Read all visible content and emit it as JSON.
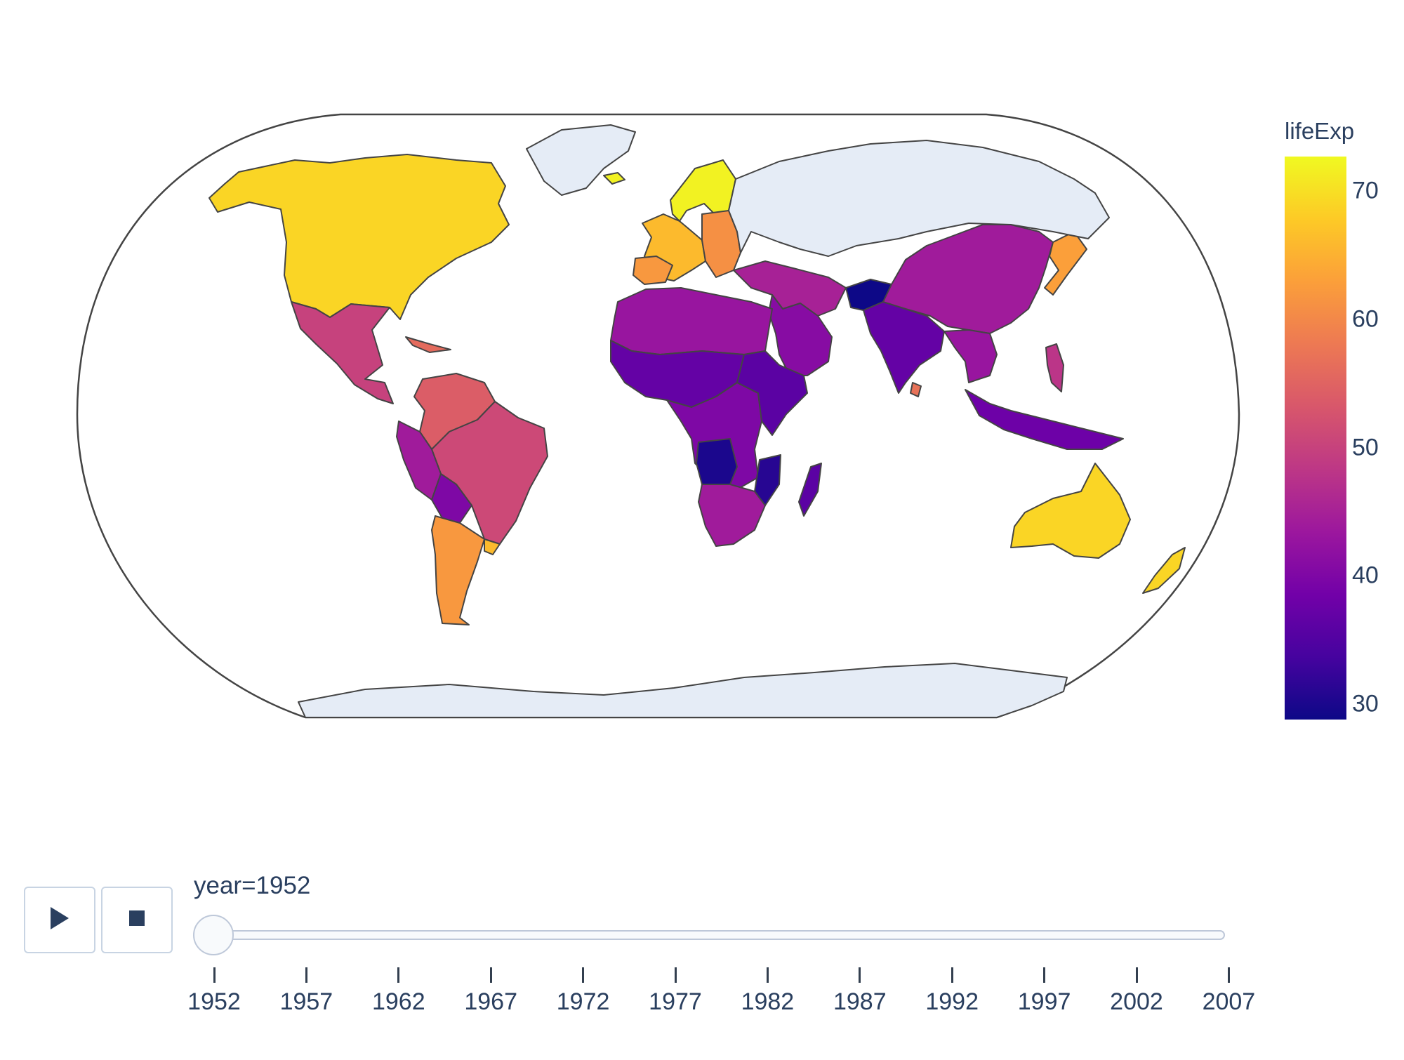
{
  "colors": {
    "land_no_data": "#e5ecf6",
    "country_border": "#444444",
    "frame": "#444444",
    "text": "#2a3f5f",
    "colorscale": [
      "#0d0887",
      "#46039f",
      "#7201a8",
      "#9c179e",
      "#bd3786",
      "#d8576b",
      "#ed7953",
      "#fb9f3a",
      "#fdca26",
      "#f0f921"
    ]
  },
  "map": {
    "projection": "natural earth",
    "color_variable": "lifeExp",
    "regions": [
      {
        "name": "North America (US & Canada)",
        "lifeExp": 69
      },
      {
        "name": "Mexico & Central America",
        "lifeExp": 50
      },
      {
        "name": "Caribbean",
        "lifeExp": 56
      },
      {
        "name": "Venezuela & Colombia",
        "lifeExp": 54
      },
      {
        "name": "Brazil",
        "lifeExp": 51
      },
      {
        "name": "Peru",
        "lifeExp": 44
      },
      {
        "name": "Bolivia",
        "lifeExp": 40
      },
      {
        "name": "Argentina & Chile",
        "lifeExp": 62
      },
      {
        "name": "Uruguay",
        "lifeExp": 66
      },
      {
        "name": "Western Europe",
        "lifeExp": 66
      },
      {
        "name": "Iberia",
        "lifeExp": 62
      },
      {
        "name": "Scandinavia",
        "lifeExp": 72
      },
      {
        "name": "Eastern Europe",
        "lifeExp": 61
      },
      {
        "name": "Turkey & Middle East",
        "lifeExp": 45
      },
      {
        "name": "Arabia",
        "lifeExp": 41
      },
      {
        "name": "Afghanistan",
        "lifeExp": 28.8
      },
      {
        "name": "North Africa",
        "lifeExp": 43
      },
      {
        "name": "Sahel",
        "lifeExp": 37
      },
      {
        "name": "Central Africa",
        "lifeExp": 40
      },
      {
        "name": "East Africa",
        "lifeExp": 36
      },
      {
        "name": "Angola",
        "lifeExp": 30
      },
      {
        "name": "Mozambique",
        "lifeExp": 31
      },
      {
        "name": "Southern Africa",
        "lifeExp": 44
      },
      {
        "name": "Madagascar",
        "lifeExp": 36
      },
      {
        "name": "South Asia",
        "lifeExp": 37
      },
      {
        "name": "Sri Lanka",
        "lifeExp": 57
      },
      {
        "name": "China & Mongolia",
        "lifeExp": 44
      },
      {
        "name": "Southeast Asia",
        "lifeExp": 43
      },
      {
        "name": "Indonesia",
        "lifeExp": 38
      },
      {
        "name": "Philippines",
        "lifeExp": 48
      },
      {
        "name": "Japan & Korea",
        "lifeExp": 63
      },
      {
        "name": "Australia",
        "lifeExp": 69
      },
      {
        "name": "New Zealand",
        "lifeExp": 69
      },
      {
        "name": "Greenland",
        "lifeExp": null
      },
      {
        "name": "Russia",
        "lifeExp": null
      },
      {
        "name": "Antarctica",
        "lifeExp": null
      },
      {
        "name": "Iceland",
        "lifeExp": 72
      }
    ]
  },
  "colorbar": {
    "title": "lifeExp",
    "range": [
      28.8,
      72.7
    ],
    "ticks": [
      70,
      60,
      50,
      40,
      30
    ]
  },
  "controls": {
    "play_icon": "play-icon",
    "stop_icon": "stop-icon"
  },
  "slider": {
    "label": "year=1952",
    "current_value": 1952,
    "steps": [
      "1952",
      "1957",
      "1962",
      "1967",
      "1972",
      "1977",
      "1982",
      "1987",
      "1992",
      "1997",
      "2002",
      "2007"
    ]
  }
}
